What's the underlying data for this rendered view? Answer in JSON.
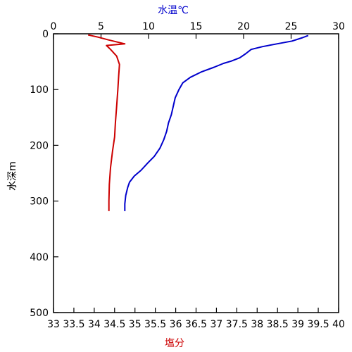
{
  "chart_data": {
    "type": "line",
    "axes": {
      "depth": {
        "label": "水深m",
        "lim": [
          0,
          500
        ],
        "ticks": [
          0,
          100,
          200,
          300,
          400,
          500
        ],
        "tick_labels": [
          "0",
          "100",
          "200",
          "300",
          "400",
          "500"
        ],
        "inverted": true
      },
      "temperature": {
        "label": "水温℃",
        "lim": [
          0,
          30
        ],
        "ticks": [
          0,
          5,
          10,
          15,
          20,
          25,
          30
        ],
        "tick_labels": [
          "0",
          "5",
          "10",
          "15",
          "20",
          "25",
          "30"
        ],
        "color": "#0000cc"
      },
      "salinity": {
        "label": "塩分",
        "lim": [
          33,
          40
        ],
        "ticks": [
          33,
          33.5,
          34,
          34.5,
          35,
          35.5,
          36,
          36.5,
          37,
          37.5,
          38,
          38.5,
          39,
          39.5,
          40
        ],
        "tick_labels": [
          "33",
          "33.5",
          "34",
          "34.5",
          "35",
          "35.5",
          "36",
          "36.5",
          "37",
          "37.5",
          "38",
          "38.5",
          "39",
          "39.5",
          "40"
        ],
        "color": "#cc0000"
      }
    },
    "grid": false,
    "series": [
      {
        "variable": "temperature",
        "color": "#0000cc",
        "points": [
          {
            "x": 26.8,
            "depth": 3
          },
          {
            "x": 26.2,
            "depth": 7
          },
          {
            "x": 25.1,
            "depth": 13
          },
          {
            "x": 23.5,
            "depth": 18
          },
          {
            "x": 22.0,
            "depth": 23
          },
          {
            "x": 20.8,
            "depth": 28
          },
          {
            "x": 20.2,
            "depth": 36
          },
          {
            "x": 19.6,
            "depth": 43
          },
          {
            "x": 18.7,
            "depth": 49
          },
          {
            "x": 17.9,
            "depth": 53
          },
          {
            "x": 16.9,
            "depth": 60
          },
          {
            "x": 15.6,
            "depth": 68
          },
          {
            "x": 14.4,
            "depth": 78
          },
          {
            "x": 13.6,
            "depth": 88
          },
          {
            "x": 13.2,
            "depth": 100
          },
          {
            "x": 12.8,
            "depth": 115
          },
          {
            "x": 12.6,
            "depth": 130
          },
          {
            "x": 12.4,
            "depth": 145
          },
          {
            "x": 12.1,
            "depth": 160
          },
          {
            "x": 11.9,
            "depth": 175
          },
          {
            "x": 11.6,
            "depth": 190
          },
          {
            "x": 11.2,
            "depth": 205
          },
          {
            "x": 10.6,
            "depth": 220
          },
          {
            "x": 9.9,
            "depth": 232
          },
          {
            "x": 9.2,
            "depth": 245
          },
          {
            "x": 8.5,
            "depth": 255
          },
          {
            "x": 8.0,
            "depth": 266
          },
          {
            "x": 7.8,
            "depth": 276
          },
          {
            "x": 7.6,
            "depth": 290
          },
          {
            "x": 7.5,
            "depth": 305
          },
          {
            "x": 7.5,
            "depth": 318
          }
        ]
      },
      {
        "variable": "salinity",
        "color": "#cc0000",
        "points": [
          {
            "x": 33.85,
            "depth": 2
          },
          {
            "x": 34.1,
            "depth": 6
          },
          {
            "x": 34.35,
            "depth": 11
          },
          {
            "x": 34.75,
            "depth": 18
          },
          {
            "x": 34.3,
            "depth": 21
          },
          {
            "x": 34.4,
            "depth": 28
          },
          {
            "x": 34.55,
            "depth": 40
          },
          {
            "x": 34.62,
            "depth": 55
          },
          {
            "x": 34.6,
            "depth": 75
          },
          {
            "x": 34.58,
            "depth": 100
          },
          {
            "x": 34.55,
            "depth": 130
          },
          {
            "x": 34.52,
            "depth": 160
          },
          {
            "x": 34.5,
            "depth": 185
          },
          {
            "x": 34.45,
            "depth": 210
          },
          {
            "x": 34.4,
            "depth": 240
          },
          {
            "x": 34.37,
            "depth": 270
          },
          {
            "x": 34.36,
            "depth": 300
          },
          {
            "x": 34.36,
            "depth": 318
          }
        ]
      }
    ]
  }
}
